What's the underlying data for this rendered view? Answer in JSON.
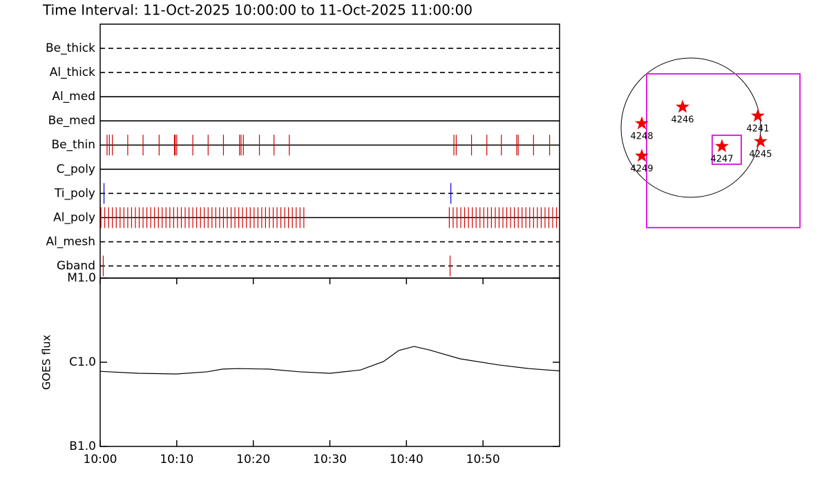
{
  "chart_data": [
    {
      "type": "timeline",
      "title": "Time Interval: 11-Oct-2025 10:00:00 to 11-Oct-2025 11:00:00",
      "categories": [
        "Be_thick",
        "Al_thick",
        "Al_med",
        "Be_med",
        "Be_thin",
        "C_poly",
        "Ti_poly",
        "Al_poly",
        "Al_mesh",
        "Gband"
      ],
      "styles": [
        "dashed",
        "dashed",
        "solid",
        "solid",
        "solid",
        "solid",
        "dashed",
        "solid",
        "dashed",
        "dashed"
      ],
      "event_colors": [
        "#cc0000",
        "#cc0000",
        "#cc0000",
        "#cc0000",
        "#cc0000",
        "#cc0000",
        "#0000cc",
        "#cc0000",
        "#cc0000",
        "#cc0000"
      ],
      "events": [
        [],
        [],
        [],
        [],
        [
          0.9,
          1.2,
          1.6,
          3.6,
          5.6,
          7.7,
          9.7,
          9.8,
          10.0,
          12.1,
          14.1,
          16.1,
          18.2,
          18.4,
          18.7,
          20.8,
          22.7,
          24.7,
          46.2,
          46.5,
          48.5,
          50.5,
          52.4,
          54.4,
          54.6,
          56.6,
          58.7
        ],
        [],
        [
          0.5,
          45.8
        ],
        [
          0.1,
          0.6,
          1.1,
          1.6,
          2.1,
          2.6,
          3.1,
          3.6,
          4.1,
          4.6,
          5.1,
          5.6,
          6.1,
          6.6,
          7.1,
          7.6,
          8.1,
          8.6,
          9.1,
          9.6,
          10.1,
          10.6,
          11.1,
          11.6,
          12.1,
          12.6,
          13.1,
          13.6,
          14.1,
          14.6,
          15.1,
          15.6,
          16.1,
          16.6,
          17.1,
          17.6,
          18.1,
          18.6,
          19.1,
          19.6,
          20.1,
          20.6,
          21.1,
          21.6,
          22.1,
          22.6,
          23.1,
          23.6,
          24.1,
          24.6,
          25.1,
          25.6,
          26.1,
          26.6,
          45.6,
          46.1,
          46.6,
          47.1,
          47.6,
          48.1,
          48.6,
          49.1,
          49.6,
          50.1,
          50.6,
          51.1,
          51.6,
          52.1,
          52.6,
          53.1,
          53.6,
          54.1,
          54.6,
          55.1,
          55.6,
          56.1,
          56.6,
          57.1,
          57.6,
          58.1,
          58.6,
          59.1,
          59.6
        ],
        [],
        [
          0.4,
          45.7
        ]
      ],
      "xlim": [
        0,
        60
      ]
    },
    {
      "type": "line",
      "ylabel": "GOES flux",
      "log_scale": true,
      "color": "#000000",
      "x": [
        0,
        5,
        10,
        14,
        16,
        18,
        22,
        26,
        30,
        34,
        37,
        39,
        41,
        43,
        47,
        52,
        56,
        60
      ],
      "values": [
        7.8e-07,
        7.4e-07,
        7.25e-07,
        7.7e-07,
        8.3e-07,
        8.4e-07,
        8.3e-07,
        7.7e-07,
        7.4e-07,
        8.1e-07,
        1.02e-06,
        1.38e-06,
        1.54e-06,
        1.4e-06,
        1.1e-06,
        9.3e-07,
        8.4e-07,
        7.9e-07
      ],
      "xlim": [
        0,
        60
      ],
      "xticks": [
        {
          "value": 0,
          "label": "10:00"
        },
        {
          "value": 10,
          "label": "10:10"
        },
        {
          "value": 20,
          "label": "10:20"
        },
        {
          "value": 30,
          "label": "10:30"
        },
        {
          "value": 40,
          "label": "10:40"
        },
        {
          "value": 50,
          "label": "10:50"
        }
      ],
      "ylim": [
        1e-07,
        1e-05
      ],
      "yticks": [
        {
          "value": 1e-07,
          "label": "B1.0"
        },
        {
          "value": 1e-06,
          "label": "C1.0"
        },
        {
          "value": 1e-05,
          "label": "M1.0"
        }
      ]
    },
    {
      "type": "map",
      "disk_radius": 960,
      "color": "#ee0000",
      "box_color": "#dd22dd",
      "regions": [
        {
          "label": "4248",
          "x": -675,
          "y": 57
        },
        {
          "label": "4249",
          "x": -675,
          "y": -390
        },
        {
          "label": "4246",
          "x": -114,
          "y": 285
        },
        {
          "label": "4241",
          "x": 922,
          "y": 162
        },
        {
          "label": "4245",
          "x": 960,
          "y": -190
        },
        {
          "label": "4247",
          "x": 428,
          "y": -257
        }
      ],
      "boxes": [
        {
          "xlim": [
            -608,
            1501
          ],
          "ylim": [
            -1377,
            741
          ]
        },
        {
          "xlim": [
            294,
            694
          ],
          "ylim": [
            -504,
            -105
          ]
        }
      ]
    }
  ]
}
